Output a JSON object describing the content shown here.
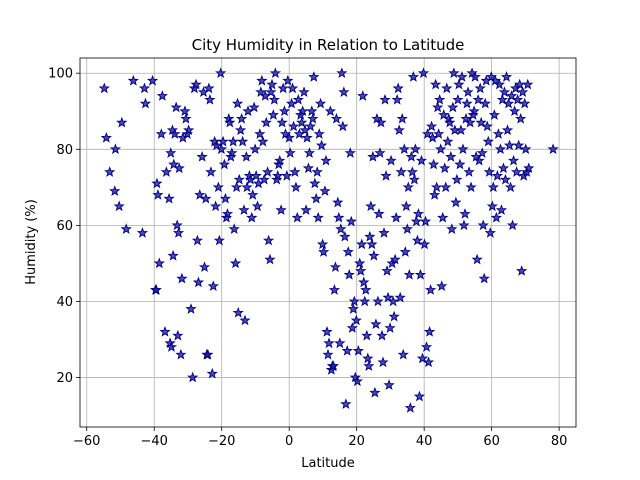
{
  "chart_data": {
    "type": "scatter",
    "title": "City Humidity in Relation to Latitude",
    "xlabel": "Latitude",
    "ylabel": "Humidity (%)",
    "xlim": [
      -62,
      85
    ],
    "ylim": [
      7,
      104
    ],
    "xticks": [
      -60,
      -40,
      -20,
      0,
      20,
      40,
      60,
      80
    ],
    "yticks": [
      20,
      40,
      60,
      80,
      100
    ],
    "grid": true,
    "marker": "star",
    "marker_color": "#1a1aa6",
    "marker_edge": "#000080",
    "points": [
      [
        -54.8,
        96
      ],
      [
        -54.2,
        83
      ],
      [
        -53.2,
        74
      ],
      [
        -51.7,
        69
      ],
      [
        -51.5,
        80
      ],
      [
        -50.4,
        65
      ],
      [
        -49.6,
        87
      ],
      [
        -48.3,
        59
      ],
      [
        -46.2,
        98
      ],
      [
        -43.5,
        58
      ],
      [
        -42.9,
        96
      ],
      [
        -42.6,
        92
      ],
      [
        -40.5,
        98
      ],
      [
        -39.6,
        43
      ],
      [
        -39.4,
        43
      ],
      [
        -39.2,
        71
      ],
      [
        -38.9,
        68
      ],
      [
        -38.5,
        50
      ],
      [
        -37.9,
        84
      ],
      [
        -37.6,
        94
      ],
      [
        -36.8,
        32
      ],
      [
        -36.4,
        74
      ],
      [
        -35.6,
        67
      ],
      [
        -35.3,
        29
      ],
      [
        -35.1,
        79
      ],
      [
        -34.9,
        28
      ],
      [
        -34.6,
        85
      ],
      [
        -34.4,
        52
      ],
      [
        -34.2,
        76
      ],
      [
        -33.9,
        84
      ],
      [
        -33.5,
        91
      ],
      [
        -33.2,
        60
      ],
      [
        -33.0,
        31
      ],
      [
        -32.8,
        58
      ],
      [
        -32.6,
        75
      ],
      [
        -32.1,
        26
      ],
      [
        -31.8,
        46
      ],
      [
        -31.5,
        83
      ],
      [
        -30.9,
        90
      ],
      [
        -30.6,
        88
      ],
      [
        -30.2,
        84
      ],
      [
        -29.8,
        85
      ],
      [
        -29.1,
        38
      ],
      [
        -28.6,
        20
      ],
      [
        -28.1,
        96
      ],
      [
        -27.6,
        97
      ],
      [
        -27.2,
        56
      ],
      [
        -26.9,
        45
      ],
      [
        -26.5,
        68
      ],
      [
        -25.8,
        78
      ],
      [
        -25.4,
        95
      ],
      [
        -25.1,
        49
      ],
      [
        -24.7,
        67
      ],
      [
        -24.4,
        26
      ],
      [
        -24.1,
        26
      ],
      [
        -23.8,
        96
      ],
      [
        -23.5,
        93
      ],
      [
        -23.2,
        74
      ],
      [
        -22.8,
        21
      ],
      [
        -22.5,
        44
      ],
      [
        -22.1,
        82
      ],
      [
        -21.8,
        65
      ],
      [
        -21.5,
        81
      ],
      [
        -21.0,
        70
      ],
      [
        -20.7,
        56
      ],
      [
        -20.3,
        100
      ],
      [
        -20.1,
        80
      ],
      [
        -19.6,
        82
      ],
      [
        -19.2,
        76
      ],
      [
        -18.9,
        67
      ],
      [
        -18.6,
        62
      ],
      [
        -18.3,
        63
      ],
      [
        -17.9,
        88
      ],
      [
        -17.6,
        87
      ],
      [
        -17.3,
        78
      ],
      [
        -17.0,
        79
      ],
      [
        -16.6,
        82
      ],
      [
        -16.3,
        59
      ],
      [
        -15.9,
        50
      ],
      [
        -15.6,
        70
      ],
      [
        -15.3,
        92
      ],
      [
        -15.1,
        37
      ],
      [
        -14.8,
        72
      ],
      [
        -14.4,
        85
      ],
      [
        -14.1,
        88
      ],
      [
        -13.8,
        82
      ],
      [
        -13.4,
        64
      ],
      [
        -13.1,
        35
      ],
      [
        -12.7,
        78
      ],
      [
        -12.5,
        70
      ],
      [
        -12.2,
        90
      ],
      [
        -11.8,
        73
      ],
      [
        -11.5,
        72
      ],
      [
        -11.1,
        62
      ],
      [
        -10.8,
        68
      ],
      [
        -10.4,
        91
      ],
      [
        -10.1,
        80
      ],
      [
        -9.8,
        73
      ],
      [
        -9.4,
        65
      ],
      [
        -9.1,
        71
      ],
      [
        -8.7,
        84
      ],
      [
        -8.4,
        95
      ],
      [
        -8.1,
        98
      ],
      [
        -7.8,
        82
      ],
      [
        -7.4,
        72
      ],
      [
        -7.1,
        94
      ],
      [
        -6.8,
        87
      ],
      [
        -6.4,
        74
      ],
      [
        -6.1,
        56
      ],
      [
        -5.7,
        51
      ],
      [
        -5.4,
        95
      ],
      [
        -5.1,
        97
      ],
      [
        -4.7,
        89
      ],
      [
        -4.4,
        93
      ],
      [
        -4.1,
        100
      ],
      [
        -3.7,
        72
      ],
      [
        -3.4,
        73
      ],
      [
        -3.1,
        76
      ],
      [
        -2.8,
        77
      ],
      [
        -2.4,
        64
      ],
      [
        -2.1,
        87
      ],
      [
        -1.8,
        96
      ],
      [
        -1.4,
        90
      ],
      [
        -1.1,
        84
      ],
      [
        -0.7,
        73
      ],
      [
        -0.4,
        98
      ],
      [
        0.0,
        83
      ],
      [
        0.3,
        79
      ],
      [
        0.7,
        92
      ],
      [
        1.0,
        96
      ],
      [
        1.3,
        86
      ],
      [
        1.7,
        74
      ],
      [
        2.0,
        70
      ],
      [
        2.4,
        62
      ],
      [
        2.7,
        93
      ],
      [
        3.0,
        84
      ],
      [
        3.4,
        89
      ],
      [
        3.7,
        87
      ],
      [
        4.0,
        90
      ],
      [
        4.4,
        95
      ],
      [
        4.7,
        85
      ],
      [
        5.0,
        64
      ],
      [
        5.3,
        83
      ],
      [
        5.7,
        75
      ],
      [
        6.0,
        79
      ],
      [
        6.3,
        86
      ],
      [
        6.7,
        90
      ],
      [
        7.0,
        88
      ],
      [
        7.3,
        99
      ],
      [
        7.6,
        71
      ],
      [
        8.0,
        67
      ],
      [
        8.3,
        74
      ],
      [
        8.6,
        62
      ],
      [
        8.9,
        84
      ],
      [
        9.3,
        92
      ],
      [
        9.6,
        81
      ],
      [
        9.9,
        55
      ],
      [
        10.2,
        53
      ],
      [
        10.6,
        69
      ],
      [
        10.9,
        77
      ],
      [
        11.2,
        32
      ],
      [
        11.5,
        26
      ],
      [
        11.8,
        29
      ],
      [
        12.2,
        90
      ],
      [
        12.5,
        22
      ],
      [
        12.8,
        23
      ],
      [
        13.1,
        23
      ],
      [
        13.4,
        43
      ],
      [
        13.7,
        49
      ],
      [
        14.0,
        88
      ],
      [
        14.4,
        66
      ],
      [
        14.7,
        62
      ],
      [
        15.0,
        29
      ],
      [
        15.3,
        59
      ],
      [
        15.6,
        100
      ],
      [
        15.9,
        86
      ],
      [
        16.2,
        95
      ],
      [
        16.5,
        57
      ],
      [
        16.8,
        13
      ],
      [
        17.2,
        27
      ],
      [
        17.5,
        53
      ],
      [
        17.8,
        47
      ],
      [
        18.1,
        79
      ],
      [
        18.4,
        61
      ],
      [
        18.7,
        33
      ],
      [
        19.0,
        38
      ],
      [
        19.3,
        40
      ],
      [
        19.6,
        20
      ],
      [
        19.9,
        35
      ],
      [
        20.2,
        19
      ],
      [
        20.5,
        27
      ],
      [
        20.9,
        50
      ],
      [
        21.2,
        48
      ],
      [
        21.5,
        55
      ],
      [
        21.8,
        94
      ],
      [
        22.1,
        45
      ],
      [
        22.4,
        40
      ],
      [
        22.7,
        43
      ],
      [
        23.0,
        31
      ],
      [
        23.3,
        25
      ],
      [
        23.6,
        23
      ],
      [
        23.9,
        57
      ],
      [
        24.2,
        65
      ],
      [
        24.5,
        55
      ],
      [
        24.8,
        78
      ],
      [
        25.1,
        52
      ],
      [
        25.4,
        16
      ],
      [
        25.7,
        34
      ],
      [
        26.0,
        88
      ],
      [
        26.3,
        40
      ],
      [
        26.6,
        63
      ],
      [
        26.9,
        79
      ],
      [
        27.2,
        87
      ],
      [
        27.5,
        31
      ],
      [
        27.8,
        24
      ],
      [
        28.1,
        58
      ],
      [
        28.4,
        93
      ],
      [
        28.7,
        73
      ],
      [
        29.0,
        48
      ],
      [
        29.3,
        41
      ],
      [
        29.6,
        18
      ],
      [
        29.9,
        33
      ],
      [
        30.2,
        77
      ],
      [
        30.5,
        50
      ],
      [
        30.8,
        40
      ],
      [
        31.1,
        36
      ],
      [
        31.4,
        51
      ],
      [
        31.7,
        62
      ],
      [
        32.0,
        93
      ],
      [
        32.3,
        96
      ],
      [
        32.6,
        85
      ],
      [
        32.9,
        41
      ],
      [
        33.2,
        74
      ],
      [
        33.5,
        88
      ],
      [
        33.8,
        26
      ],
      [
        34.1,
        80
      ],
      [
        34.4,
        53
      ],
      [
        34.7,
        65
      ],
      [
        35.0,
        59
      ],
      [
        35.3,
        70
      ],
      [
        35.6,
        47
      ],
      [
        35.9,
        12
      ],
      [
        36.2,
        78
      ],
      [
        36.5,
        74
      ],
      [
        36.8,
        99
      ],
      [
        37.1,
        72
      ],
      [
        37.4,
        80
      ],
      [
        37.7,
        61
      ],
      [
        38.0,
        56
      ],
      [
        38.3,
        63
      ],
      [
        38.6,
        15
      ],
      [
        38.9,
        47
      ],
      [
        39.2,
        77
      ],
      [
        39.5,
        25
      ],
      [
        39.8,
        100
      ],
      [
        40.1,
        55
      ],
      [
        40.4,
        61
      ],
      [
        40.7,
        28
      ],
      [
        41.0,
        84
      ],
      [
        41.3,
        24
      ],
      [
        41.6,
        32
      ],
      [
        41.9,
        43
      ],
      [
        42.2,
        86
      ],
      [
        42.5,
        83
      ],
      [
        42.8,
        76
      ],
      [
        43.1,
        68
      ],
      [
        43.4,
        97
      ],
      [
        43.7,
        70
      ],
      [
        44.0,
        91
      ],
      [
        44.3,
        84
      ],
      [
        44.6,
        93
      ],
      [
        44.9,
        80
      ],
      [
        45.2,
        44
      ],
      [
        45.5,
        62
      ],
      [
        45.8,
        89
      ],
      [
        46.1,
        75
      ],
      [
        46.4,
        70
      ],
      [
        46.7,
        96
      ],
      [
        47.0,
        82
      ],
      [
        47.3,
        88
      ],
      [
        47.6,
        87
      ],
      [
        47.9,
        78
      ],
      [
        48.2,
        59
      ],
      [
        48.5,
        91
      ],
      [
        48.8,
        100
      ],
      [
        49.1,
        85
      ],
      [
        49.4,
        66
      ],
      [
        49.7,
        72
      ],
      [
        50.0,
        93
      ],
      [
        50.3,
        97
      ],
      [
        50.6,
        76
      ],
      [
        50.9,
        85
      ],
      [
        51.2,
        99
      ],
      [
        51.5,
        80
      ],
      [
        51.8,
        60
      ],
      [
        52.1,
        63
      ],
      [
        52.4,
        88
      ],
      [
        52.7,
        92
      ],
      [
        53.0,
        95
      ],
      [
        53.3,
        74
      ],
      [
        53.6,
        87
      ],
      [
        53.9,
        70
      ],
      [
        54.2,
        100
      ],
      [
        54.5,
        89
      ],
      [
        54.8,
        90
      ],
      [
        55.1,
        99
      ],
      [
        55.4,
        78
      ],
      [
        55.7,
        51
      ],
      [
        56.0,
        93
      ],
      [
        56.3,
        77
      ],
      [
        56.6,
        96
      ],
      [
        56.9,
        87
      ],
      [
        57.2,
        79
      ],
      [
        57.5,
        60
      ],
      [
        57.8,
        46
      ],
      [
        58.1,
        92
      ],
      [
        58.4,
        98
      ],
      [
        58.7,
        86
      ],
      [
        59.0,
        82
      ],
      [
        59.3,
        74
      ],
      [
        59.6,
        58
      ],
      [
        59.9,
        99
      ],
      [
        60.2,
        65
      ],
      [
        60.5,
        70
      ],
      [
        60.8,
        89
      ],
      [
        61.1,
        98
      ],
      [
        61.4,
        62
      ],
      [
        61.7,
        73
      ],
      [
        62.0,
        84
      ],
      [
        62.3,
        97
      ],
      [
        62.6,
        80
      ],
      [
        62.9,
        64
      ],
      [
        63.2,
        93
      ],
      [
        63.5,
        75
      ],
      [
        63.8,
        95
      ],
      [
        64.1,
        72
      ],
      [
        64.4,
        99
      ],
      [
        64.7,
        85
      ],
      [
        65.0,
        92
      ],
      [
        65.3,
        81
      ],
      [
        65.6,
        70
      ],
      [
        65.9,
        94
      ],
      [
        66.2,
        60
      ],
      [
        66.5,
        77
      ],
      [
        66.8,
        90
      ],
      [
        67.1,
        96
      ],
      [
        67.4,
        74
      ],
      [
        67.7,
        93
      ],
      [
        68.0,
        81
      ],
      [
        68.3,
        97
      ],
      [
        68.6,
        88
      ],
      [
        68.9,
        48
      ],
      [
        69.2,
        95
      ],
      [
        69.5,
        73
      ],
      [
        69.8,
        92
      ],
      [
        70.1,
        80
      ],
      [
        70.4,
        74
      ],
      [
        70.7,
        97
      ],
      [
        71.0,
        75
      ],
      [
        78.2,
        80
      ]
    ]
  }
}
